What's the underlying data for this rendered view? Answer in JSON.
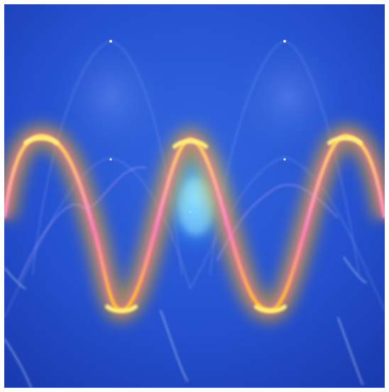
{
  "image": {
    "subject": "abstract-light-waves",
    "palette": {
      "background_deep": "#1a3fb8",
      "background_mid": "#2a56d6",
      "glow_cyan": "#59c8ff",
      "wave_yellow": "#ffd21a",
      "wave_orange": "#ffb300",
      "wave_pink": "#ff6fb0",
      "faint_line": "#8fb0ff"
    }
  }
}
